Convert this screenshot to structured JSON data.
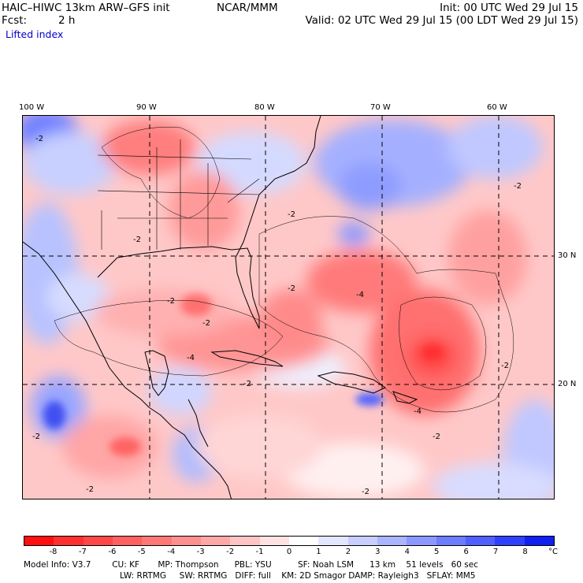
{
  "header": {
    "model": "HAIC–HIWC 13km ARW–GFS init",
    "org": "NCAR/MMM",
    "init": "Init: 00 UTC Wed 29 Jul 15",
    "fcst_label": "Fcst:",
    "fcst_value": "2 h",
    "valid": "Valid: 02 UTC Wed 29 Jul 15 (00 LDT Wed 29 Jul 15)",
    "field": "Lifted index"
  },
  "axes": {
    "lon_labels": [
      "100 W",
      "90 W",
      "80 W",
      "70 W",
      "60 W"
    ],
    "lat_labels": [
      "30 N",
      "20 N"
    ]
  },
  "contour_labels": [
    "-2",
    "-2",
    "-2",
    "-2",
    "-2",
    "-2",
    "-2",
    "-2",
    "-2",
    "-2",
    "-2",
    "-2",
    "-4",
    "-4",
    "-4",
    "-2"
  ],
  "colorbar": {
    "values": [
      "-8",
      "-7",
      "-6",
      "-5",
      "-4",
      "-3",
      "-2",
      "-1",
      "0",
      "1",
      "2",
      "3",
      "4",
      "5",
      "6",
      "7",
      "8"
    ],
    "unit": "°C",
    "colors": [
      "#ff1010",
      "#ff3030",
      "#ff4848",
      "#ff6060",
      "#ff7878",
      "#ff9090",
      "#ffa8a8",
      "#ffc4c4",
      "#ffe2e2",
      "#ffffff",
      "#e2e6ff",
      "#c8ceff",
      "#aab4ff",
      "#8c98ff",
      "#6e7cff",
      "#5060ff",
      "#3040ff",
      "#1020ee"
    ]
  },
  "model_info": {
    "line1": "Model Info: V3.7        CU: KF       MP: Thompson      PBL: YSU          SF: Noah LSM      13 km    51 levels   60 sec",
    "line2": "LW: RRTMG     SW: RRTMG   DIFF: full    KM: 2D Smagor DAMP: Rayleigh3   SFLAY: MM5"
  }
}
